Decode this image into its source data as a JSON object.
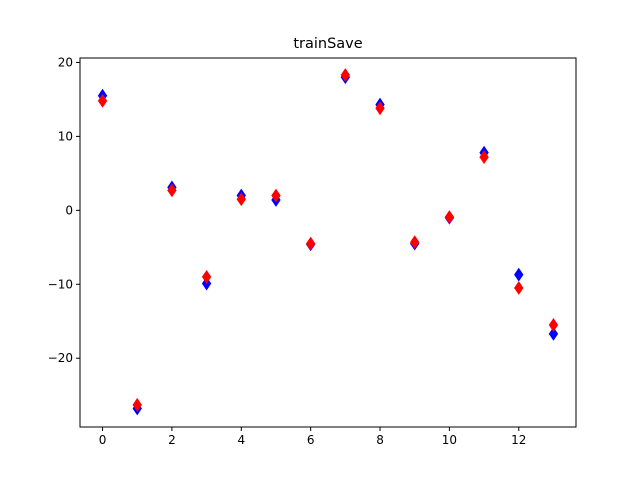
{
  "chart_data": {
    "type": "scatter",
    "title": "trainSave",
    "xlabel": "",
    "ylabel": "",
    "xlim": [
      -0.65,
      13.65
    ],
    "ylim": [
      -29.3,
      20.6
    ],
    "xticks": [
      0,
      2,
      4,
      6,
      8,
      10,
      12
    ],
    "yticks": [
      -20,
      -10,
      0,
      10,
      20
    ],
    "grid": false,
    "marker": "diamond",
    "x": [
      0,
      1,
      2,
      3,
      4,
      5,
      6,
      7,
      8,
      9,
      10,
      11,
      12,
      13
    ],
    "series": [
      {
        "color": "#0000ff",
        "values": [
          15.5,
          -26.8,
          3.1,
          -9.9,
          2.0,
          1.4,
          -4.6,
          18.0,
          14.3,
          -4.5,
          -1.0,
          7.8,
          -8.7,
          -16.7
        ]
      },
      {
        "color": "#ff0000",
        "values": [
          14.8,
          -26.3,
          2.7,
          -9.0,
          1.5,
          2.0,
          -4.5,
          18.3,
          13.8,
          -4.3,
          -0.9,
          7.2,
          -10.5,
          -15.5
        ]
      }
    ]
  }
}
